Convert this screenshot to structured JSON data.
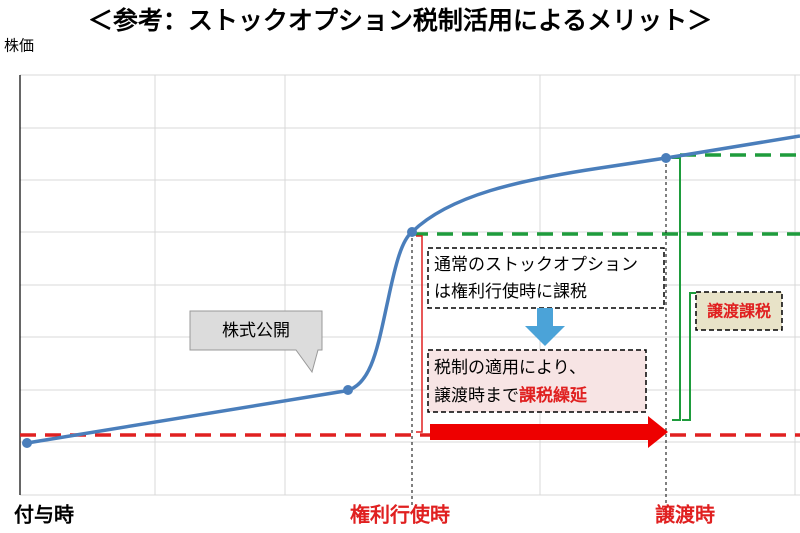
{
  "header": {
    "title": "＜参考：ストックオプション税制活用によるメリット＞"
  },
  "axis": {
    "y_label": "株価",
    "x_labels": [
      "付与時",
      "権利行使時",
      "譲渡時"
    ]
  },
  "annotations": {
    "ipo": "株式公開",
    "normal_box": [
      "通常のストックオプション",
      "は権利行使時に課税"
    ],
    "deferral_box": {
      "line1": "税制の適用により、",
      "line2_prefix": "譲渡時まで",
      "line2_highlight": "課税繰延"
    },
    "transfer_tax": "譲渡課税"
  }
}
